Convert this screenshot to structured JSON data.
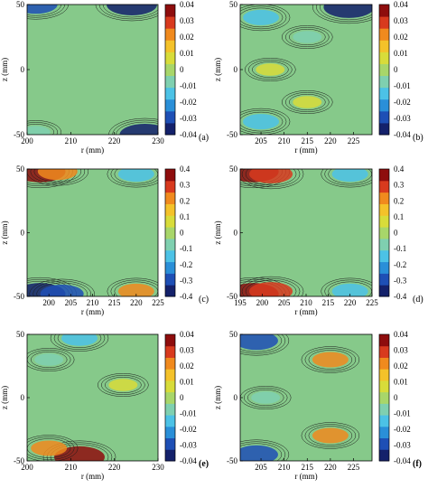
{
  "colormap": [
    "#14216b",
    "#1e4fb5",
    "#2a8fd8",
    "#4cc2e6",
    "#7fd0b0",
    "#a8d66a",
    "#d8dc3a",
    "#f4c22a",
    "#f08a1e",
    "#d83a1e",
    "#8e0d0d"
  ],
  "field_color": "#86c98a",
  "chart_data": [
    {
      "type": "heatmap",
      "panel": "(a)",
      "xlabel": "r (mm)",
      "ylabel": "z (mm)",
      "xlim": [
        200,
        230
      ],
      "xticks": [
        "200",
        "210",
        "220",
        "230"
      ],
      "ylim": [
        -50,
        50
      ],
      "yticks": [
        "50",
        "0",
        "-50"
      ],
      "colorbar": {
        "range": [
          -0.04,
          0.04
        ],
        "ticks": [
          "0.04",
          "0.03",
          "0.02",
          "0.01",
          "0",
          "-0.01",
          "-0.02",
          "-0.03",
          "-0.04"
        ]
      }
    },
    {
      "type": "heatmap",
      "panel": "(b)",
      "xlabel": "r (mm)",
      "ylabel": "z (mm)",
      "xlim": [
        200.5,
        229
      ],
      "xticks": [
        "205",
        "210",
        "215",
        "220",
        "225"
      ],
      "ylim": [
        -50,
        50
      ],
      "yticks": [
        "50",
        "0",
        "-50"
      ],
      "colorbar": {
        "range": [
          -0.04,
          0.04
        ],
        "ticks": [
          "0.04",
          "0.03",
          "0.02",
          "0.01",
          "0",
          "-0.01",
          "-0.02",
          "-0.03",
          "-0.04"
        ]
      }
    },
    {
      "type": "heatmap",
      "panel": "(c)",
      "xlabel": "r (mm)",
      "ylabel": "z (mm)",
      "xlim": [
        195,
        225
      ],
      "xticks": [
        "200",
        "205",
        "210",
        "215",
        "220",
        "225"
      ],
      "ylim": [
        -50,
        50
      ],
      "yticks": [
        "50",
        "0",
        "-50"
      ],
      "colorbar": {
        "range": [
          -0.4,
          0.4
        ],
        "ticks": [
          "0.4",
          "0.3",
          "0.2",
          "0.1",
          "0",
          "-0.1",
          "-0.2",
          "-0.3",
          "-0.4"
        ]
      }
    },
    {
      "type": "heatmap",
      "panel": "(d)",
      "xlabel": "r (mm)",
      "ylabel": "z (mm)",
      "xlim": [
        195,
        225
      ],
      "xticks": [
        "195",
        "200",
        "205",
        "210",
        "215",
        "220",
        "225"
      ],
      "ylim": [
        -50,
        50
      ],
      "yticks": [
        "50",
        "0",
        "-50"
      ],
      "colorbar": {
        "range": [
          -0.4,
          0.4
        ],
        "ticks": [
          "0.4",
          "0.3",
          "0.2",
          "0.1",
          "0",
          "-0.1",
          "-0.2",
          "-0.3",
          "-0.4"
        ]
      }
    },
    {
      "type": "heatmap",
      "panel": "(e)",
      "xlabel": "r (mm)",
      "ylabel": "z (mm)",
      "xlim": [
        200,
        230
      ],
      "xticks": [
        "200",
        "210",
        "220",
        "230"
      ],
      "ylim": [
        -50,
        50
      ],
      "yticks": [
        "50",
        "0",
        "-50"
      ],
      "colorbar": {
        "range": [
          -0.04,
          0.04
        ],
        "ticks": [
          "0.04",
          "0.03",
          "0.02",
          "0.01",
          "0",
          "-0.01",
          "-0.02",
          "-0.03",
          "-0.04"
        ]
      }
    },
    {
      "type": "heatmap",
      "panel": "(f)",
      "xlabel": "r (mm)",
      "ylabel": "z (mm)",
      "xlim": [
        200.5,
        229
      ],
      "xticks": [
        "205",
        "210",
        "215",
        "220",
        "225"
      ],
      "ylim": [
        -50,
        50
      ],
      "yticks": [
        "50",
        "0",
        "-50"
      ],
      "colorbar": {
        "range": [
          -0.04,
          0.04
        ],
        "ticks": [
          "0.04",
          "0.03",
          "0.02",
          "0.01",
          "0",
          "-0.01",
          "-0.02",
          "-0.03",
          "-0.04"
        ]
      }
    }
  ],
  "features": [
    [
      {
        "r": 202,
        "z": 50,
        "value": -0.03
      },
      {
        "r": 224,
        "z": 50,
        "value": -0.04
      },
      {
        "r": 227,
        "z": -50,
        "value": -0.04
      },
      {
        "r": 202,
        "z": -48,
        "value": -0.01
      }
    ],
    [
      {
        "r": 205,
        "z": 40,
        "value": -0.02
      },
      {
        "r": 205,
        "z": -40,
        "value": -0.02
      },
      {
        "r": 215,
        "z": 25,
        "value": -0.01
      },
      {
        "r": 215,
        "z": -25,
        "value": 0.01
      },
      {
        "r": 207,
        "z": 0,
        "value": 0.01
      },
      {
        "r": 224,
        "z": 48,
        "value": -0.04
      }
    ],
    [
      {
        "r": 198,
        "z": 48,
        "value": 0.4
      },
      {
        "r": 202,
        "z": 48,
        "value": 0.25
      },
      {
        "r": 220,
        "z": 46,
        "value": -0.2
      },
      {
        "r": 198,
        "z": -48,
        "value": -0.4
      },
      {
        "r": 203,
        "z": -48,
        "value": -0.3
      },
      {
        "r": 220,
        "z": -46,
        "value": 0.2
      }
    ],
    [
      {
        "r": 198,
        "z": 48,
        "value": 0.4
      },
      {
        "r": 202,
        "z": 46,
        "value": 0.3
      },
      {
        "r": 220,
        "z": 46,
        "value": -0.2
      },
      {
        "r": 198,
        "z": -48,
        "value": 0.4
      },
      {
        "r": 202,
        "z": -46,
        "value": 0.3
      },
      {
        "r": 220,
        "z": -46,
        "value": -0.2
      }
    ],
    [
      {
        "r": 212,
        "z": 47,
        "value": -0.02
      },
      {
        "r": 205,
        "z": 30,
        "value": -0.01
      },
      {
        "r": 222,
        "z": 10,
        "value": 0.01
      },
      {
        "r": 212,
        "z": -47,
        "value": 0.04
      },
      {
        "r": 205,
        "z": -40,
        "value": 0.02
      }
    ],
    [
      {
        "r": 204,
        "z": 45,
        "value": -0.03
      },
      {
        "r": 204,
        "z": -45,
        "value": -0.03
      },
      {
        "r": 220,
        "z": 30,
        "value": 0.02
      },
      {
        "r": 220,
        "z": -30,
        "value": 0.02
      },
      {
        "r": 206,
        "z": 0,
        "value": -0.01
      }
    ]
  ]
}
